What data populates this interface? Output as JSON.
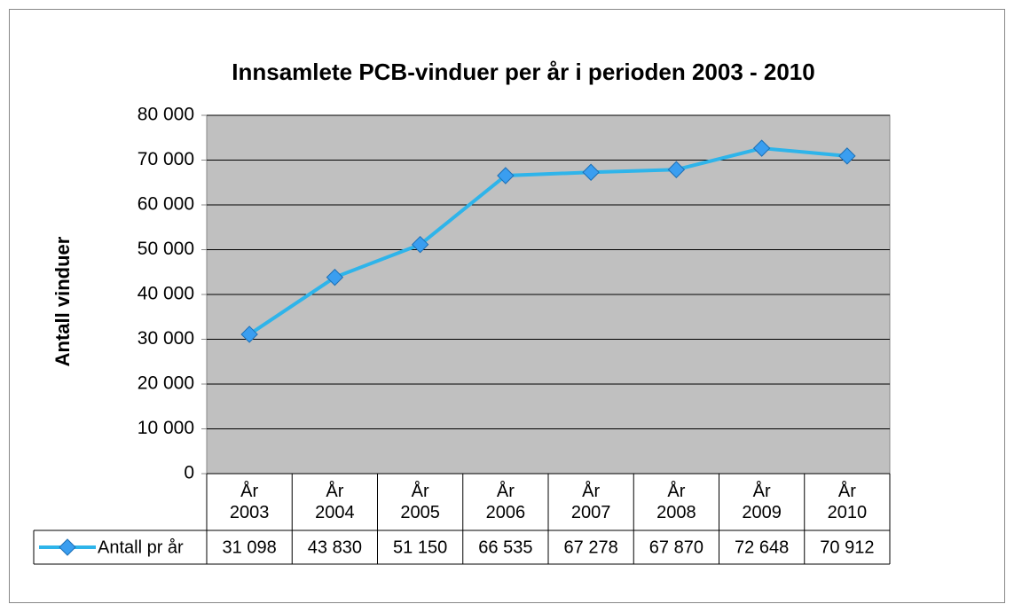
{
  "chart_data": {
    "type": "line",
    "title": "Innsamlete PCB-vinduer per år i perioden 2003 - 2010",
    "y_label": "Antall vinduer",
    "categories": [
      "År 2003",
      "År 2004",
      "År 2005",
      "År 2006",
      "År 2007",
      "År 2008",
      "År 2009",
      "År 2010"
    ],
    "series": [
      {
        "name": "Antall pr år",
        "color": "#2eb4ea",
        "marker_color": "#3a9ef0",
        "values": [
          31098,
          43830,
          51150,
          66535,
          67278,
          67870,
          72648,
          70912
        ],
        "value_labels": [
          "31 098",
          "43 830",
          "51 150",
          "66 535",
          "67 278",
          "67 870",
          "72 648",
          "70 912"
        ]
      }
    ],
    "ylim": [
      0,
      80000
    ],
    "yticks": [
      0,
      {
        "value": 10000,
        "label": "10 000"
      },
      {
        "value": 20000,
        "label": "20 000"
      },
      {
        "value": 30000,
        "label": "30 000"
      },
      {
        "value": 40000,
        "label": "40 000"
      },
      {
        "value": 50000,
        "label": "50 000"
      },
      {
        "value": 60000,
        "label": "60 000"
      },
      {
        "value": 70000,
        "label": "70 000"
      },
      {
        "value": 80000,
        "label": "80 000"
      }
    ],
    "grid": true,
    "plot_background": "#c0c0c0"
  }
}
